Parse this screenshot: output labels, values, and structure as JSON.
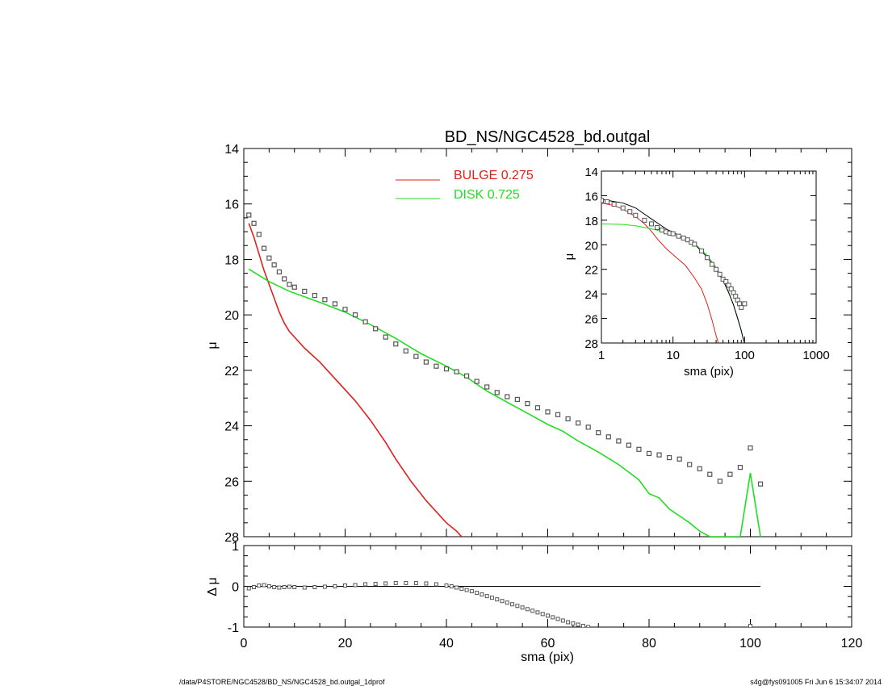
{
  "chart_data": [
    {
      "type": "scatter",
      "panel": "main",
      "title": "BD_NS/NGC4528_bd.outgal",
      "xlabel": "",
      "ylabel": "μ",
      "xlim": [
        0,
        120
      ],
      "ylim": [
        28,
        14
      ],
      "y_reversed": true,
      "yticks": [
        14,
        16,
        18,
        20,
        22,
        24,
        26,
        28
      ],
      "legend": [
        {
          "label": "BULGE  0.275",
          "color": "#e0201b"
        },
        {
          "label": "DISK  0.725",
          "color": "#22dd22"
        }
      ],
      "series": [
        {
          "name": "BULGE",
          "color": "#e0201b",
          "x": [
            1,
            2,
            3,
            4,
            5,
            6,
            7,
            8,
            9,
            10,
            12,
            15,
            18,
            20,
            22,
            25,
            28,
            30,
            33,
            36,
            38,
            40,
            42,
            43
          ],
          "y": [
            16.7,
            17.2,
            17.8,
            18.4,
            18.9,
            19.4,
            19.9,
            20.3,
            20.6,
            20.8,
            21.2,
            21.7,
            22.3,
            22.7,
            23.1,
            23.8,
            24.6,
            25.2,
            26.0,
            26.7,
            27.1,
            27.5,
            27.8,
            28.0
          ]
        },
        {
          "name": "DISK",
          "color": "#22dd22",
          "x": [
            1,
            5,
            9,
            12,
            15,
            20,
            25,
            30,
            35,
            40,
            44,
            48,
            52,
            56,
            60,
            63,
            66,
            70,
            74,
            78,
            80,
            82,
            84,
            86,
            88,
            90,
            92,
            95,
            98,
            100,
            102
          ],
          "y": [
            18.35,
            18.8,
            19.15,
            19.35,
            19.55,
            19.9,
            20.35,
            20.85,
            21.4,
            21.85,
            22.25,
            22.75,
            23.15,
            23.55,
            23.95,
            24.2,
            24.55,
            24.95,
            25.4,
            25.95,
            26.45,
            26.6,
            27.0,
            27.25,
            27.5,
            27.8,
            28.0,
            28.0,
            28.0,
            25.7,
            28.0
          ]
        },
        {
          "name": "",
          "color": "#555555",
          "marker": "square",
          "x": [
            1,
            2,
            3,
            4,
            5,
            6,
            7,
            8,
            9,
            10,
            12,
            14,
            16,
            18,
            20,
            22,
            24,
            26,
            28,
            30,
            32,
            34,
            36,
            38,
            40,
            42,
            44,
            46,
            48,
            50,
            52,
            54,
            56,
            58,
            60,
            62,
            64,
            66,
            68,
            70,
            72,
            74,
            76,
            78,
            80,
            82,
            84,
            86,
            88,
            90,
            92,
            94,
            96,
            98,
            100,
            102
          ],
          "y": [
            16.4,
            16.7,
            17.1,
            17.6,
            17.95,
            18.2,
            18.45,
            18.7,
            18.9,
            19.0,
            19.15,
            19.3,
            19.45,
            19.6,
            19.8,
            20.0,
            20.25,
            20.5,
            20.8,
            21.05,
            21.3,
            21.5,
            21.7,
            21.85,
            21.95,
            22.05,
            22.2,
            22.4,
            22.6,
            22.8,
            22.95,
            23.05,
            23.2,
            23.35,
            23.5,
            23.6,
            23.75,
            23.9,
            24.05,
            24.25,
            24.4,
            24.55,
            24.7,
            24.85,
            25.0,
            25.05,
            25.15,
            25.2,
            25.4,
            25.55,
            25.75,
            26.0,
            25.75,
            25.5,
            24.8,
            26.1
          ]
        }
      ]
    },
    {
      "type": "scatter",
      "panel": "residual",
      "xlabel": "sma (pix)",
      "ylabel": "Δ μ",
      "xlim": [
        0,
        120
      ],
      "ylim": [
        -1,
        1
      ],
      "xticks": [
        0,
        20,
        40,
        60,
        80,
        100,
        120
      ],
      "yticks": [
        -1,
        0,
        1
      ],
      "series": [
        {
          "name": "",
          "color": "#000000",
          "line": "zero",
          "x": [
            0.5,
            102
          ],
          "y": [
            0,
            0
          ]
        },
        {
          "name": "",
          "color": "#555555",
          "marker": "square",
          "x": [
            1,
            2,
            3,
            4,
            5,
            6,
            7,
            8,
            9,
            10,
            12,
            14,
            16,
            18,
            20,
            22,
            24,
            26,
            28,
            30,
            32,
            34,
            36,
            38,
            40,
            41,
            42,
            43,
            44,
            45,
            46,
            47,
            48,
            49,
            50,
            51,
            52,
            53,
            54,
            55,
            56,
            57,
            58,
            59,
            60,
            61,
            62,
            63,
            64,
            65,
            66,
            67,
            68,
            100
          ],
          "y": [
            -0.05,
            -0.02,
            0.02,
            0.03,
            0.0,
            -0.02,
            -0.03,
            -0.02,
            -0.01,
            -0.02,
            -0.03,
            -0.02,
            -0.01,
            0.0,
            0.02,
            0.03,
            0.05,
            0.06,
            0.07,
            0.08,
            0.08,
            0.08,
            0.07,
            0.05,
            0.02,
            0.0,
            -0.03,
            -0.06,
            -0.09,
            -0.12,
            -0.16,
            -0.2,
            -0.24,
            -0.28,
            -0.32,
            -0.36,
            -0.4,
            -0.44,
            -0.48,
            -0.52,
            -0.56,
            -0.6,
            -0.64,
            -0.68,
            -0.72,
            -0.76,
            -0.8,
            -0.84,
            -0.88,
            -0.91,
            -0.94,
            -0.97,
            -1.0,
            -0.97
          ]
        }
      ]
    },
    {
      "type": "scatter",
      "panel": "inset",
      "xlabel": "sma (pix)",
      "ylabel": "μ",
      "xscale": "log",
      "xlim": [
        1,
        1000
      ],
      "ylim": [
        28,
        14
      ],
      "y_reversed": true,
      "xticks": [
        1,
        10,
        100,
        1000
      ],
      "yticks": [
        14,
        16,
        18,
        20,
        22,
        24,
        26,
        28
      ],
      "series": [
        {
          "name": "BULGE",
          "color": "#e0201b",
          "x": [
            1,
            1.5,
            2,
            3,
            4,
            5,
            6,
            8,
            10,
            12,
            15,
            20,
            25,
            30,
            35,
            40,
            43
          ],
          "y": [
            16.6,
            16.8,
            17.1,
            17.7,
            18.3,
            18.9,
            19.5,
            20.3,
            20.8,
            21.2,
            21.7,
            22.7,
            23.6,
            24.8,
            26.1,
            27.4,
            28.0
          ]
        },
        {
          "name": "DISK",
          "color": "#22dd22",
          "x": [
            1,
            2,
            3,
            5,
            8,
            10,
            15,
            20,
            30,
            40,
            50,
            60,
            70,
            80,
            90,
            95,
            100
          ],
          "y": [
            18.3,
            18.35,
            18.45,
            18.7,
            19.0,
            19.2,
            19.55,
            19.9,
            20.85,
            21.85,
            22.8,
            23.9,
            24.9,
            25.95,
            27.0,
            27.6,
            28.0
          ]
        },
        {
          "name": "",
          "color": "#000000",
          "x": [
            1,
            2,
            3,
            5,
            8,
            10,
            15,
            20,
            30,
            40,
            50,
            60,
            70,
            80,
            90,
            95,
            100
          ],
          "y": [
            16.3,
            16.6,
            17.0,
            17.9,
            18.7,
            19.0,
            19.5,
            19.95,
            21.0,
            22.0,
            22.9,
            23.9,
            24.9,
            26.0,
            27.0,
            27.6,
            28.0
          ]
        },
        {
          "name": "",
          "color": "#555555",
          "marker": "square",
          "x": [
            1,
            1.2,
            1.5,
            2,
            2.5,
            3,
            4,
            5,
            6,
            7,
            8,
            9,
            10,
            12,
            14,
            16,
            18,
            20,
            25,
            30,
            35,
            40,
            45,
            50,
            55,
            60,
            65,
            70,
            75,
            80,
            85,
            90,
            100
          ],
          "y": [
            16.4,
            16.5,
            16.7,
            17.0,
            17.3,
            17.6,
            18.0,
            18.3,
            18.6,
            18.8,
            18.95,
            19.05,
            19.1,
            19.3,
            19.45,
            19.6,
            19.8,
            19.95,
            20.5,
            21.05,
            21.6,
            22.0,
            22.4,
            22.8,
            23.0,
            23.3,
            23.6,
            23.9,
            24.2,
            24.5,
            24.8,
            25.1,
            24.8
          ]
        }
      ]
    }
  ],
  "footer": {
    "left": "/data/P4STORE/NGC4528/BD_NS/NGC4528_bd.outgal_1dprof",
    "right": "s4g@fys091005  Fri Jun  6 15:34:07 2014"
  }
}
